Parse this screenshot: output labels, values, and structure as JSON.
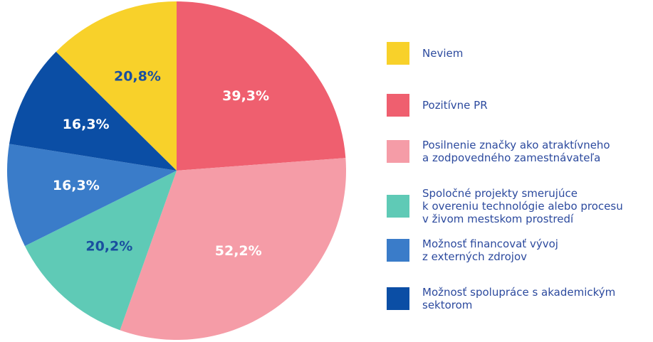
{
  "chart_data": {
    "type": "pie",
    "categories": [
      "Neviem",
      "Pozitívne PR",
      "Posilnenie značky ako atraktívneho\na zodpovedného zamestnávateľa",
      "Spoločné projekty smerujúce\nk overeniu technológie alebo procesu\nv živom mestskom prostredí",
      "Možnosť financovať vývoj\nz externých zdrojov",
      "Možnosť spolupráce s akademickým\nsektorom"
    ],
    "values": [
      20.8,
      39.3,
      52.2,
      20.2,
      16.3,
      16.3
    ],
    "value_labels": [
      "20,8%",
      "39,3%",
      "52,2%",
      "20,2%",
      "16,3%",
      "16,3%"
    ],
    "colors": [
      "#f8d12a",
      "#ef5f6f",
      "#f59ca7",
      "#5fcab6",
      "#3a7cc9",
      "#0b4ea5"
    ],
    "label_colors": [
      "#1a4f9f",
      "#ffffff",
      "#ffffff",
      "#1a4f9f",
      "#ffffff",
      "#ffffff"
    ],
    "legend": "right"
  }
}
